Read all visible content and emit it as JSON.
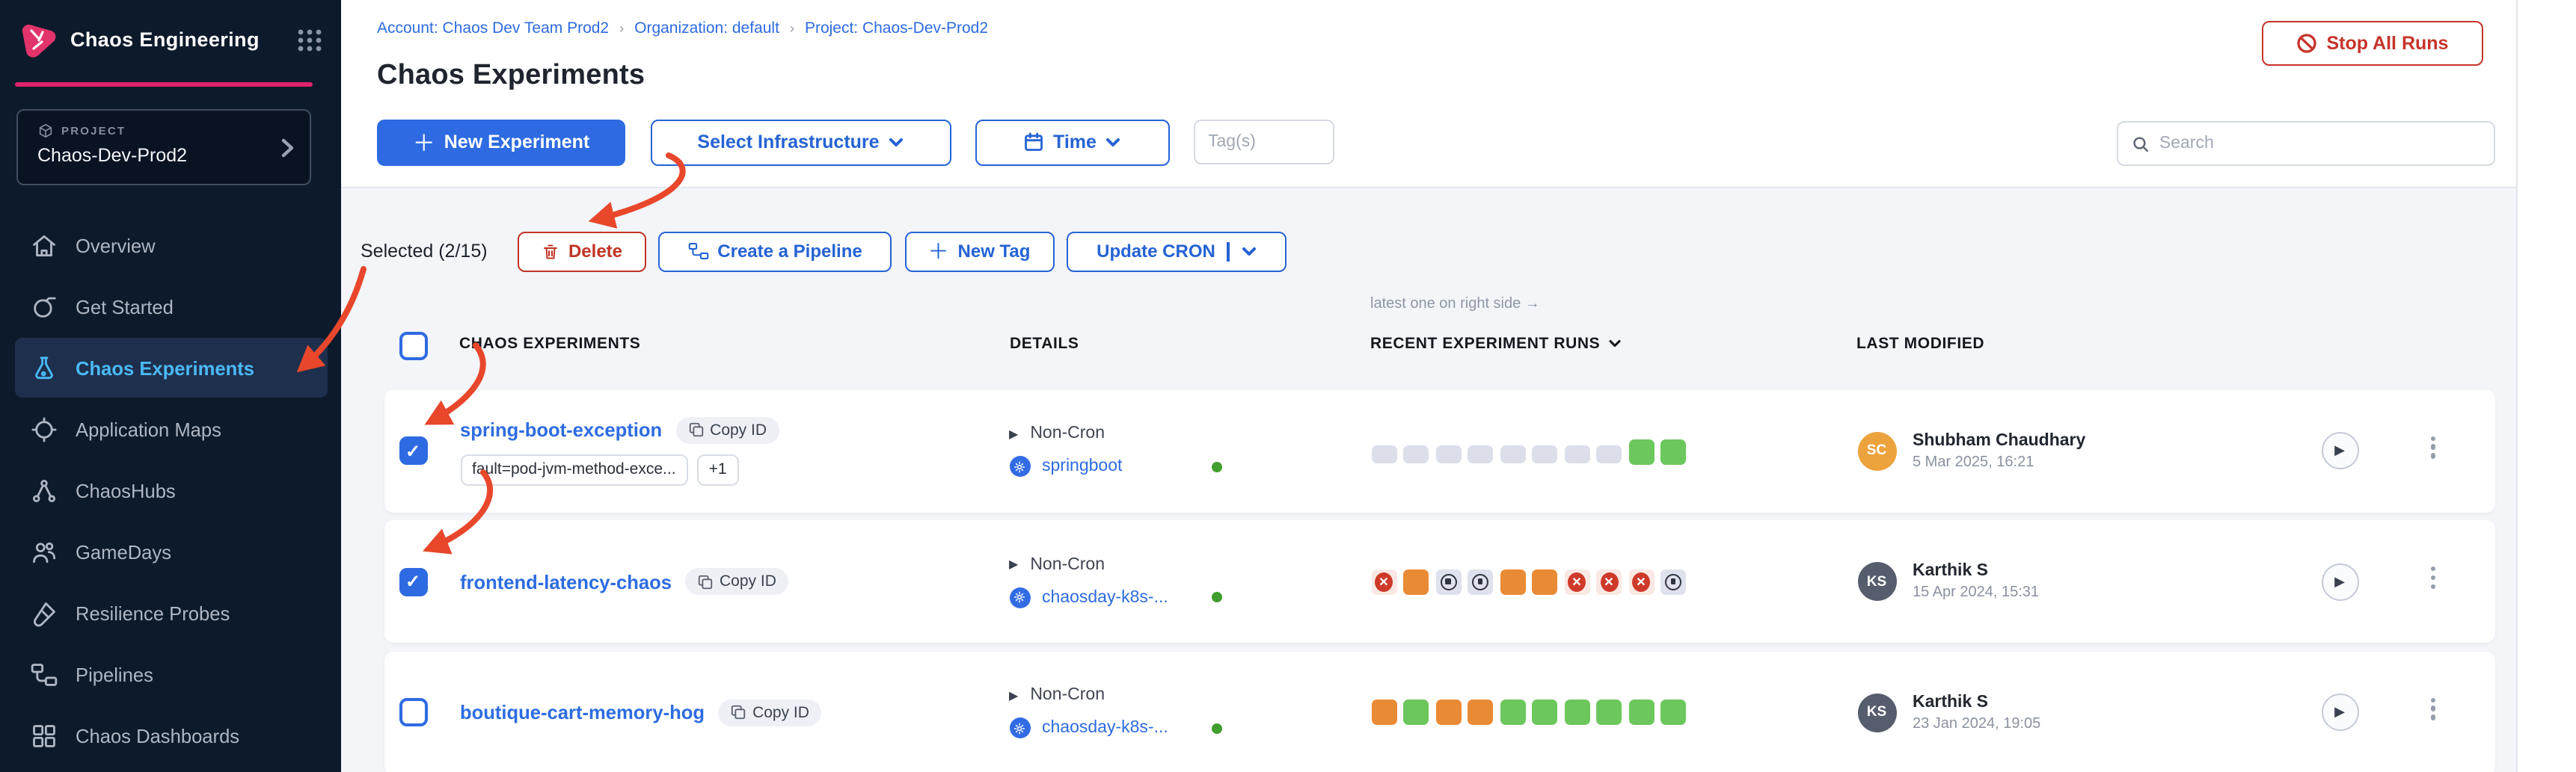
{
  "app": {
    "product": "Chaos Engineering"
  },
  "sidebar": {
    "project_label": "PROJECT",
    "project_name": "Chaos-Dev-Prod2",
    "items": [
      {
        "label": "Overview",
        "icon": "home",
        "active": false
      },
      {
        "label": "Get Started",
        "icon": "start",
        "active": false
      },
      {
        "label": "Chaos Experiments",
        "icon": "flask",
        "active": true
      },
      {
        "label": "Application Maps",
        "icon": "crosshair",
        "active": false
      },
      {
        "label": "ChaosHubs",
        "icon": "network",
        "active": false
      },
      {
        "label": "GameDays",
        "icon": "users",
        "active": false
      },
      {
        "label": "Resilience Probes",
        "icon": "testtube",
        "active": false
      },
      {
        "label": "Pipelines",
        "icon": "pipeline",
        "active": false
      },
      {
        "label": "Chaos Dashboards",
        "icon": "grid",
        "active": false
      }
    ]
  },
  "breadcrumb": {
    "items": [
      "Account: Chaos Dev Team Prod2",
      "Organization: default",
      "Project: Chaos-Dev-Prod2"
    ],
    "separator": "›"
  },
  "page": {
    "title": "Chaos Experiments",
    "stop_all_runs": "Stop All Runs"
  },
  "toolbar": {
    "new_experiment": "New Experiment",
    "select_infrastructure": "Select Infrastructure",
    "time": "Time",
    "tags_placeholder": "Tag(s)",
    "search_placeholder": "Search"
  },
  "selection": {
    "label": "Selected (2/15)",
    "delete": "Delete",
    "create_pipeline": "Create a Pipeline",
    "new_tag": "New Tag",
    "update_cron": "Update CRON"
  },
  "table": {
    "runs_note": "latest one on right side →",
    "headers": {
      "experiments": "CHAOS EXPERIMENTS",
      "details": "DETAILS",
      "runs": "RECENT EXPERIMENT RUNS",
      "modified": "LAST MODIFIED"
    },
    "rows": [
      {
        "checked": true,
        "name": "spring-boot-exception",
        "copy_label": "Copy ID",
        "tags": [
          "fault=pod-jvm-method-exce...",
          "+1"
        ],
        "cron": "Non-Cron",
        "infra": "springboot",
        "runs": [
          "empty",
          "empty",
          "empty",
          "empty",
          "empty",
          "empty",
          "empty",
          "empty",
          "passed",
          "passed"
        ],
        "modified": {
          "initials": "SC",
          "color": "#eda33d",
          "name": "Shubham Chaudhary",
          "date": "5 Mar 2025, 16:21"
        }
      },
      {
        "checked": true,
        "name": "frontend-latency-chaos",
        "copy_label": "Copy ID",
        "tags": [],
        "cron": "Non-Cron",
        "infra": "chaosday-k8s-...",
        "runs": [
          "failed",
          "running",
          "stopped",
          "stopped",
          "running",
          "running",
          "failed",
          "failed",
          "failed",
          "stopped"
        ],
        "modified": {
          "initials": "KS",
          "color": "#565d6d",
          "name": "Karthik S",
          "date": "15 Apr 2024, 15:31"
        }
      },
      {
        "checked": false,
        "name": "boutique-cart-memory-hog",
        "copy_label": "Copy ID",
        "tags": [],
        "cron": "Non-Cron",
        "infra": "chaosday-k8s-...",
        "runs": [
          "running",
          "passed",
          "running",
          "running",
          "passed",
          "passed",
          "passed",
          "passed",
          "passed",
          "passed"
        ],
        "modified": {
          "initials": "KS",
          "color": "#565d6d",
          "name": "Karthik S",
          "date": "23 Jan 2024, 19:05"
        }
      }
    ]
  },
  "icons": {
    "check": "✓",
    "play": "▶",
    "failed_x": "✕",
    "arrow_color": "#e8472b",
    "accent_pink": "#e0246a",
    "accent_blue": "#2e6be2",
    "danger_red": "#c7342a"
  }
}
